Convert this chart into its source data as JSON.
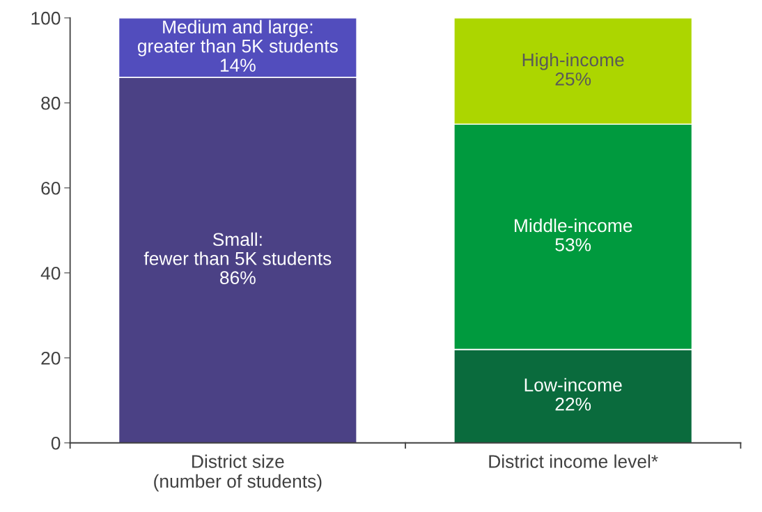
{
  "chart_data": {
    "type": "bar",
    "stacked": true,
    "categories": [
      "District size\n(number of students)",
      "District income level*"
    ],
    "series": [
      {
        "name": "Small:\nfewer than 5K students",
        "color": "#4b4185",
        "values": [
          86,
          null
        ],
        "value_labels": [
          "86%",
          null
        ]
      },
      {
        "name": "Medium and large:\ngreater than 5K students",
        "color": "#524dbd",
        "values": [
          14,
          null
        ],
        "value_labels": [
          "14%",
          null
        ]
      },
      {
        "name": "Low-income",
        "color": "#0a6b3d",
        "values": [
          null,
          22
        ],
        "value_labels": [
          null,
          "22%"
        ]
      },
      {
        "name": "Middle-income",
        "color": "#009a3e",
        "values": [
          null,
          53
        ],
        "value_labels": [
          null,
          "53%"
        ]
      },
      {
        "name": "High-income",
        "color": "#acd600",
        "values": [
          null,
          25
        ],
        "value_labels": [
          null,
          "25%"
        ]
      }
    ],
    "ylim": [
      0,
      100
    ],
    "yticks": [
      0,
      20,
      40,
      60,
      80,
      100
    ],
    "grid": false,
    "legend": false
  }
}
